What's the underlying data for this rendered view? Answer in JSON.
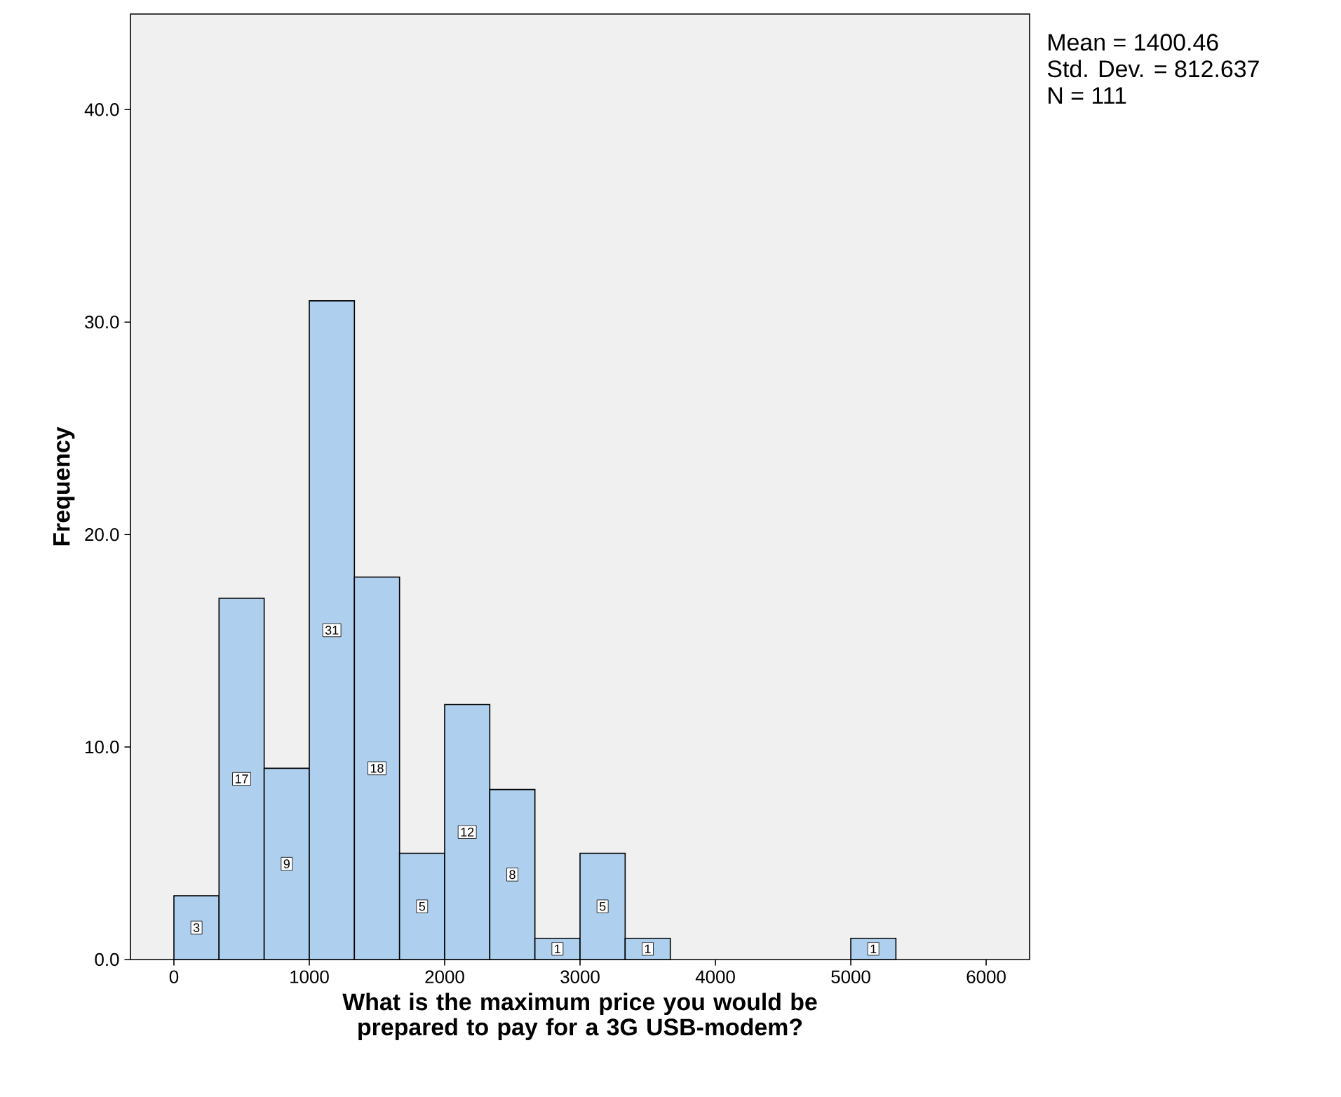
{
  "chart_data": {
    "type": "histogram",
    "xlabel": "What is the maximum price you would be prepared to pay for a 3G USB-modem?",
    "ylabel": "Frequency",
    "bins": [
      0,
      333.3,
      666.7,
      1000,
      1333.3,
      1666.7,
      2000,
      2333.3,
      2666.7,
      3000,
      3333.3,
      3666.7,
      4000,
      4333.3,
      4666.7,
      5000,
      5333.3
    ],
    "values": [
      3,
      17,
      9,
      31,
      18,
      5,
      12,
      8,
      1,
      5,
      1,
      0,
      0,
      0,
      0,
      1
    ],
    "color": "#aed0ee",
    "value_labels": [
      "3",
      "17",
      "9",
      "31",
      "18",
      "5",
      "12",
      "8",
      "1",
      "5",
      "1",
      null,
      null,
      null,
      null,
      "1"
    ],
    "xlim": [
      -321,
      6321
    ],
    "xticks": [
      0,
      1000,
      2000,
      3000,
      4000,
      5000,
      6000
    ],
    "ylim": [
      0,
      44.5
    ],
    "yticks": [
      {
        "value": 0,
        "label": "0.0"
      },
      {
        "value": 10,
        "label": "10.0"
      },
      {
        "value": 20,
        "label": "20.0"
      },
      {
        "value": 30,
        "label": "30.0"
      },
      {
        "value": 40,
        "label": "40.0"
      }
    ],
    "annotations": [
      "Mean = 1400.46",
      "Std. Dev. = 812.637",
      "N = 111"
    ]
  }
}
